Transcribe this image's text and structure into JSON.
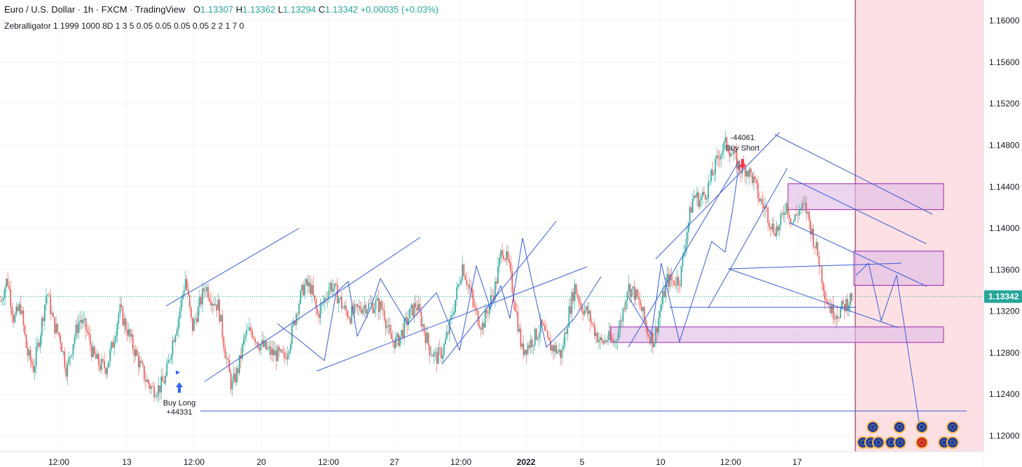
{
  "header": {
    "symbol_line": "Euro / U.S. Dollar · 1h · FXCM · TradingView",
    "open_label": "O",
    "open": "1.13307",
    "high_label": "H",
    "high": "1.13362",
    "low_label": "L",
    "low": "1.13294",
    "close_label": "C",
    "close": "1.13342",
    "change": "+0.00035 (+0.03%)"
  },
  "indicator": "Zebralligator 1 1999 1000 8D 1 3 5 0.05 0.05 0.05 0.05 2 2 1 7 0",
  "colors": {
    "up": "#26a69a",
    "down": "#ef5350",
    "drawing": "#3a5bd9",
    "zone_fill": "#e1bee7",
    "zone_stroke": "#9c27b0",
    "future_fill": "#fde0e3",
    "price_label_bg": "#26a69a"
  },
  "chart_data": {
    "type": "candlestick",
    "title": "Euro / U.S. Dollar · 1h · FXCM · TradingView",
    "ylim": [
      1.117,
      1.162
    ],
    "y_ticks": [
      "1.16000",
      "1.15600",
      "1.15200",
      "1.14800",
      "1.14400",
      "1.14000",
      "1.13600",
      "1.13200",
      "1.12800",
      "1.12400",
      "1.12000"
    ],
    "x_ticks": [
      "12:00",
      "13",
      "12:00",
      "20",
      "12:00",
      "27",
      "12:00",
      "2022",
      "5",
      "10",
      "12:00",
      "17"
    ],
    "last_price": "1.13342",
    "grid": true,
    "price_path": [
      1.133,
      1.1352,
      1.1312,
      1.1325,
      1.128,
      1.1265,
      1.13,
      1.134,
      1.1308,
      1.1295,
      1.1262,
      1.1292,
      1.1313,
      1.1302,
      1.1278,
      1.1268,
      1.1266,
      1.1289,
      1.1322,
      1.1305,
      1.1287,
      1.127,
      1.1254,
      1.1245,
      1.1246,
      1.1256,
      1.129,
      1.1316,
      1.1352,
      1.1303,
      1.1323,
      1.1345,
      1.1332,
      1.1325,
      1.1282,
      1.1247,
      1.1265,
      1.1296,
      1.1302,
      1.129,
      1.1285,
      1.128,
      1.1278,
      1.1274,
      1.1296,
      1.1325,
      1.1345,
      1.1343,
      1.1316,
      1.133,
      1.1346,
      1.1336,
      1.1322,
      1.1316,
      1.1321,
      1.1326,
      1.1325,
      1.1327,
      1.1322,
      1.1294,
      1.129,
      1.1302,
      1.1317,
      1.1327,
      1.1306,
      1.1284,
      1.1275,
      1.1282,
      1.1304,
      1.1334,
      1.1365,
      1.1342,
      1.1318,
      1.1306,
      1.1325,
      1.1345,
      1.1382,
      1.1364,
      1.1325,
      1.1282,
      1.1288,
      1.1296,
      1.1306,
      1.1288,
      1.1284,
      1.1278,
      1.1315,
      1.1344,
      1.1325,
      1.1318,
      1.1302,
      1.1289,
      1.1294,
      1.129,
      1.131,
      1.1344,
      1.1338,
      1.1324,
      1.1301,
      1.1291,
      1.1323,
      1.135,
      1.1349,
      1.1352,
      1.1398,
      1.1432,
      1.1427,
      1.1436,
      1.1454,
      1.1473,
      1.1482,
      1.147,
      1.1458,
      1.1458,
      1.1448,
      1.1428,
      1.1418,
      1.14,
      1.14,
      1.1425,
      1.1405,
      1.1418,
      1.142,
      1.1395,
      1.137,
      1.1335,
      1.132,
      1.1319,
      1.1326,
      1.1334
    ],
    "annotations": [
      {
        "label_line1": "Buy Long",
        "label_line2": "+44331",
        "signal": "buy",
        "price": 1.1252
      },
      {
        "label_line1": "-44061",
        "label_line2": "Buy Short",
        "signal": "sell",
        "price": 1.146
      }
    ],
    "zones": [
      {
        "top": 1.1443,
        "bottom": 1.1418
      },
      {
        "top": 1.1378,
        "bottom": 1.1345
      },
      {
        "top": 1.1305,
        "bottom": 1.129
      }
    ],
    "levels": [
      1.122
    ]
  }
}
